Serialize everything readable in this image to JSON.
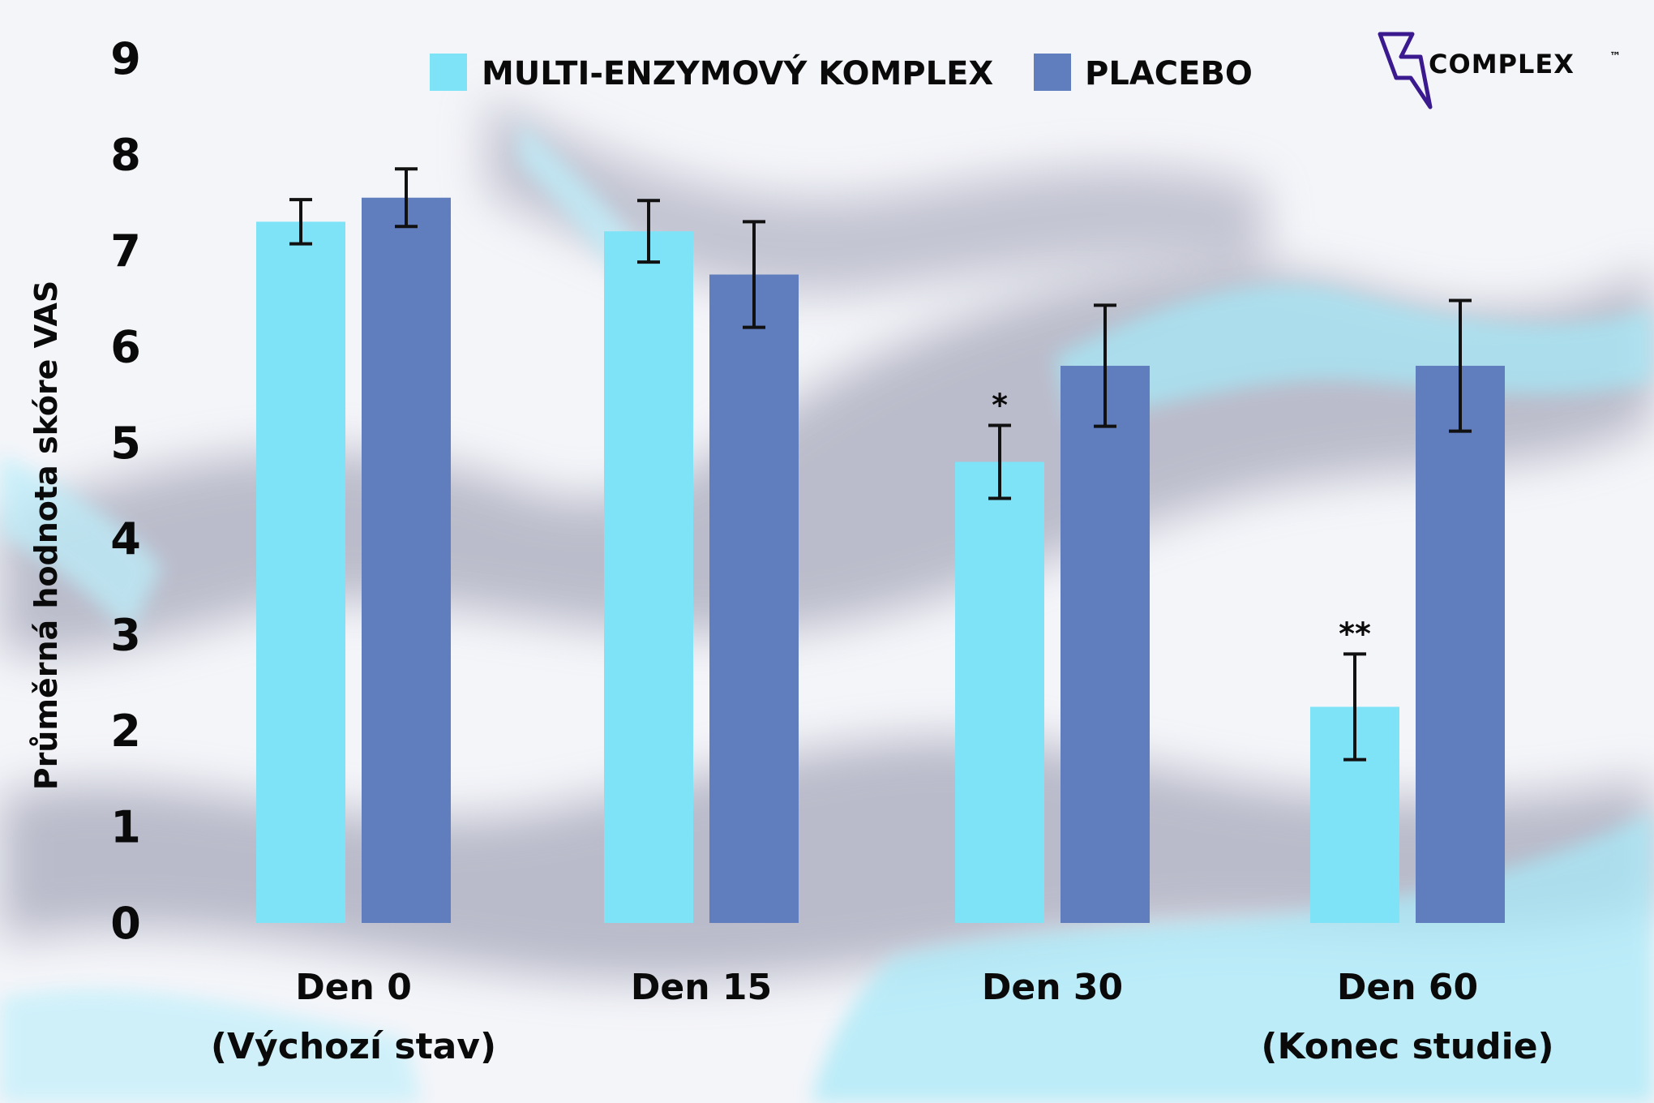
{
  "brand": {
    "name": "COMPLEX",
    "trademark": "™",
    "logo_icon": "lightning-bolt-icon",
    "logo_color": "#3b1a8f"
  },
  "legend": [
    {
      "label": "MULTI-ENZYMOVÝ KOMPLEX",
      "color": "#7fe3f8"
    },
    {
      "label": "PLACEBO",
      "color": "#607ebd"
    }
  ],
  "chart_data": {
    "type": "bar",
    "ylabel": "Průměrná hodnota skóre VAS",
    "xlabel": "",
    "ylim": [
      0,
      9
    ],
    "yticks": [
      "0",
      "1",
      "2",
      "3",
      "4",
      "5",
      "6",
      "7",
      "8",
      "9"
    ],
    "categories": [
      {
        "label": "Den 0",
        "sublabel": "(Výchozí stav)"
      },
      {
        "label": "Den 15",
        "sublabel": ""
      },
      {
        "label": "Den 30",
        "sublabel": ""
      },
      {
        "label": "Den 60",
        "sublabel": "(Konec studie)"
      }
    ],
    "series": [
      {
        "name": "MULTI-ENZYMOVÝ KOMPLEX",
        "color": "#7fe3f8",
        "values": [
          7.3,
          7.2,
          4.8,
          2.25
        ],
        "error": [
          0.23,
          0.32,
          0.38,
          0.55
        ],
        "significance": [
          "",
          "",
          "*",
          "**"
        ]
      },
      {
        "name": "PLACEBO",
        "color": "#607ebd",
        "values": [
          7.55,
          6.75,
          5.8,
          5.8
        ],
        "error": [
          0.3,
          0.55,
          0.63,
          0.68
        ],
        "significance": [
          "",
          "",
          "",
          ""
        ]
      }
    ],
    "grid": false,
    "legend_position": "top"
  }
}
